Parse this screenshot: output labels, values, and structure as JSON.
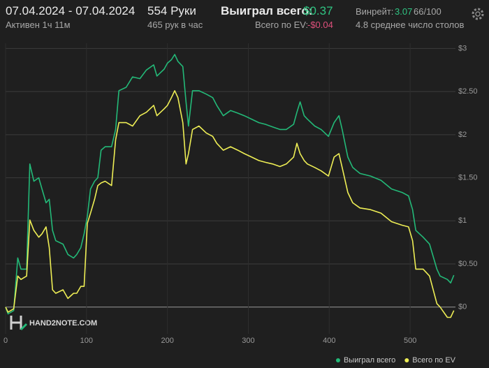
{
  "header": {
    "date_range": "07.04.2024 - 07.04.2024",
    "active": "Активен 1ч 11м",
    "hands": "554 Руки",
    "hands_per_hour": "465 рук в час",
    "won_label": "Выиграл всего:",
    "won_value": "$0.37",
    "ev_label": "Всего по EV:",
    "ev_value": "-$0.04",
    "winrate_label": "Винрейт:",
    "winrate_value": "3.07",
    "winrate_hands": "66/100",
    "tables": "4.8 среднее число столов",
    "logo": "HAND2NOTE.COM"
  },
  "chart_data": {
    "type": "line",
    "x": [
      0,
      3,
      10,
      15,
      19,
      26,
      30,
      35,
      41,
      45,
      50,
      54,
      58,
      62,
      71,
      77,
      84,
      88,
      93,
      97,
      101,
      105,
      110,
      114,
      118,
      123,
      131,
      136,
      140,
      149,
      157,
      166,
      174,
      183,
      187,
      196,
      200,
      205,
      209,
      213,
      219,
      223,
      226,
      231,
      239,
      248,
      256,
      261,
      269,
      278,
      287,
      295,
      304,
      313,
      321,
      330,
      339,
      347,
      356,
      360,
      364,
      369,
      373,
      382,
      390,
      399,
      406,
      412,
      416,
      423,
      429,
      438,
      451,
      464,
      477,
      490,
      498,
      503,
      507,
      516,
      524,
      533,
      537,
      546,
      550,
      554
    ],
    "series": [
      {
        "name": "Выиграл всего",
        "color": "#23b978",
        "values": [
          0,
          -0.08,
          -0.04,
          0.57,
          0.44,
          0.44,
          1.66,
          1.46,
          1.5,
          1.37,
          1.21,
          1.25,
          0.89,
          0.77,
          0.73,
          0.61,
          0.57,
          0.61,
          0.69,
          0.85,
          1.05,
          1.37,
          1.46,
          1.5,
          1.82,
          1.86,
          1.86,
          2.06,
          2.51,
          2.55,
          2.67,
          2.65,
          2.75,
          2.81,
          2.68,
          2.76,
          2.83,
          2.87,
          2.93,
          2.85,
          2.79,
          2.38,
          2.1,
          2.51,
          2.51,
          2.47,
          2.43,
          2.34,
          2.22,
          2.28,
          2.25,
          2.22,
          2.18,
          2.14,
          2.12,
          2.09,
          2.06,
          2.06,
          2.12,
          2.26,
          2.38,
          2.22,
          2.18,
          2.1,
          2.06,
          1.98,
          2.14,
          2.22,
          2.06,
          1.74,
          1.62,
          1.55,
          1.52,
          1.47,
          1.37,
          1.33,
          1.29,
          1.13,
          0.89,
          0.81,
          0.73,
          0.44,
          0.36,
          0.32,
          0.28,
          0.37
        ]
      },
      {
        "name": "Всего по EV",
        "color": "#eeee55",
        "values": [
          0,
          -0.06,
          -0.02,
          0.36,
          0.32,
          0.36,
          1.01,
          0.89,
          0.81,
          0.85,
          0.93,
          0.69,
          0.2,
          0.16,
          0.2,
          0.1,
          0.16,
          0.16,
          0.24,
          0.24,
          0.97,
          1.09,
          1.25,
          1.41,
          1.44,
          1.46,
          1.41,
          1.94,
          2.14,
          2.14,
          2.1,
          2.22,
          2.26,
          2.34,
          2.22,
          2.3,
          2.34,
          2.43,
          2.51,
          2.43,
          2.14,
          1.66,
          1.78,
          2.06,
          2.1,
          2.02,
          1.98,
          1.9,
          1.82,
          1.86,
          1.82,
          1.78,
          1.74,
          1.7,
          1.68,
          1.66,
          1.63,
          1.66,
          1.74,
          1.9,
          1.78,
          1.7,
          1.66,
          1.62,
          1.58,
          1.52,
          1.74,
          1.78,
          1.62,
          1.33,
          1.21,
          1.15,
          1.13,
          1.09,
          0.99,
          0.95,
          0.93,
          0.77,
          0.44,
          0.44,
          0.36,
          0.04,
          0,
          -0.12,
          -0.12,
          -0.04
        ]
      }
    ],
    "xlim": [
      0,
      556
    ],
    "xticks": [
      0,
      100,
      200,
      300,
      400,
      500
    ],
    "ylim": [
      -0.31,
      3.06
    ],
    "yticks": [
      {
        "value": 0,
        "label": "$0"
      },
      {
        "value": 0.5,
        "label": "$0.50"
      },
      {
        "value": 1,
        "label": "$1"
      },
      {
        "value": 1.5,
        "label": "$1.50"
      },
      {
        "value": 2,
        "label": "$2"
      },
      {
        "value": 2.5,
        "label": "$2.50"
      },
      {
        "value": 3,
        "label": "$3"
      }
    ],
    "grid": true,
    "legend": "bottom-right"
  }
}
